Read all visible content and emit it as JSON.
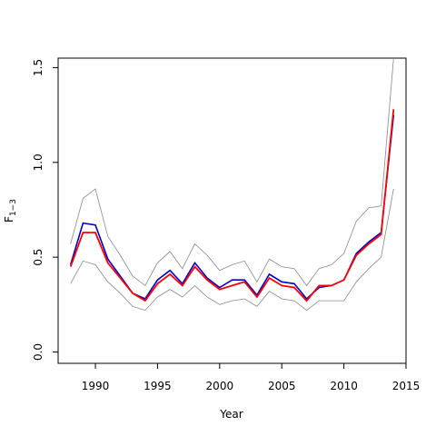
{
  "chart_data": {
    "type": "line",
    "title": "",
    "xlabel": "Year",
    "ylabel_main": "F",
    "ylabel_sub": "1−3",
    "xlim": [
      1987,
      2015
    ],
    "ylim": [
      -0.06,
      1.55
    ],
    "x_ticks": [
      1990,
      1995,
      2000,
      2005,
      2010,
      2015
    ],
    "y_ticks": [
      0.0,
      0.5,
      1.0,
      1.5
    ],
    "y_tick_labels": [
      "0.0",
      "0.5",
      "1.0",
      "1.5"
    ],
    "colors": {
      "upper": "#888888",
      "lower": "#888888",
      "estimate": "#ff0000",
      "alt": "#0000cc"
    },
    "x": [
      1988,
      1989,
      1990,
      1991,
      1992,
      1993,
      1994,
      1995,
      1996,
      1997,
      1998,
      1999,
      2000,
      2001,
      2002,
      2003,
      2004,
      2005,
      2006,
      2007,
      2008,
      2009,
      2010,
      2011,
      2012,
      2013,
      2014
    ],
    "series": [
      {
        "key": "upper",
        "values": [
          0.57,
          0.81,
          0.86,
          0.61,
          0.51,
          0.4,
          0.35,
          0.47,
          0.53,
          0.44,
          0.57,
          0.51,
          0.43,
          0.46,
          0.48,
          0.37,
          0.49,
          0.45,
          0.44,
          0.35,
          0.44,
          0.46,
          0.52,
          0.69,
          0.76,
          0.77,
          1.55
        ]
      },
      {
        "key": "lower",
        "values": [
          0.36,
          0.48,
          0.46,
          0.37,
          0.31,
          0.24,
          0.22,
          0.29,
          0.33,
          0.29,
          0.35,
          0.29,
          0.25,
          0.27,
          0.28,
          0.24,
          0.32,
          0.28,
          0.27,
          0.22,
          0.27,
          0.27,
          0.27,
          0.37,
          0.44,
          0.5,
          0.86
        ]
      },
      {
        "key": "alt",
        "values": [
          0.46,
          0.68,
          0.67,
          0.49,
          0.4,
          0.31,
          0.28,
          0.38,
          0.43,
          0.36,
          0.47,
          0.39,
          0.34,
          0.38,
          0.38,
          0.3,
          0.41,
          0.37,
          0.36,
          0.28,
          0.34,
          0.35,
          0.38,
          0.52,
          0.58,
          0.63,
          1.25
        ]
      },
      {
        "key": "estimate",
        "values": [
          0.45,
          0.63,
          0.63,
          0.47,
          0.39,
          0.31,
          0.27,
          0.36,
          0.41,
          0.35,
          0.45,
          0.38,
          0.33,
          0.35,
          0.37,
          0.29,
          0.39,
          0.35,
          0.34,
          0.27,
          0.35,
          0.35,
          0.38,
          0.51,
          0.57,
          0.62,
          1.28
        ]
      }
    ]
  }
}
